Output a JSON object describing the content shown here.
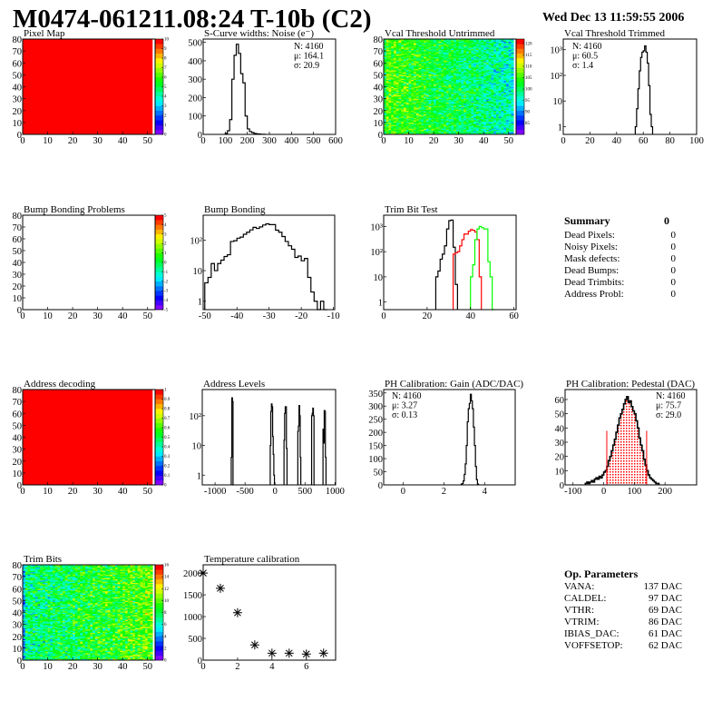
{
  "header": {
    "title": "M0474-061211.08:24 T-10b (C2)",
    "date": "Wed Dec 13 11:59:55 2006"
  },
  "colors": {
    "hist_line": "#000000",
    "red": "#ff0000",
    "green": "#00ff00",
    "palette": "rainbow (purple-blue-cyan-green-yellow-red)"
  },
  "chart_data": [
    {
      "id": "pixel-map",
      "type": "heatmap",
      "title": "Pixel Map",
      "xlim": [
        0,
        53
      ],
      "ylim": [
        0,
        80
      ],
      "xticks": [
        0,
        10,
        20,
        30,
        40,
        50
      ],
      "yticks": [
        0,
        10,
        20,
        30,
        40,
        50,
        60,
        70,
        80
      ],
      "z_range": [
        0,
        10
      ],
      "palette_ticks": [
        0,
        1,
        2,
        3,
        4,
        5,
        6,
        7,
        8,
        9,
        10
      ],
      "nx": 52,
      "ny": 80,
      "uniform_value": 10
    },
    {
      "id": "s-curve-widths",
      "type": "bar",
      "title": "S-Curve widths: Noise (e⁻)",
      "xlim": [
        0,
        600
      ],
      "ylim": [
        0,
        518
      ],
      "xticks": [
        0,
        100,
        200,
        300,
        400,
        500,
        600
      ],
      "yticks": [
        0,
        100,
        200,
        300,
        400,
        500
      ],
      "series": [
        {
          "x_start": 100,
          "bin_width": 10,
          "values": [
            5,
            20,
            80,
            300,
            430,
            490,
            440,
            330,
            280,
            100,
            30,
            15,
            10,
            5,
            3,
            2,
            1,
            1
          ]
        }
      ],
      "stats": [
        {
          "text": "N: 4160"
        },
        {
          "text": "μ: 164.1"
        },
        {
          "text": "σ: 20.9"
        }
      ]
    },
    {
      "id": "vcal-threshold-untrimmed",
      "type": "heatmap",
      "title": "Vcal Threshold Untrimmed",
      "xlim": [
        0,
        53
      ],
      "ylim": [
        0,
        80
      ],
      "xticks": [
        0,
        10,
        20,
        30,
        40,
        50
      ],
      "yticks": [
        0,
        10,
        20,
        30,
        40,
        50,
        60,
        70,
        80
      ],
      "z_range": [
        80,
        122
      ],
      "palette_ticks": [
        85,
        90,
        95,
        100,
        105,
        110,
        115,
        120
      ],
      "nx": 52,
      "ny": 80,
      "trend": {
        "left_mean": 106,
        "right_mean": 96,
        "spread": 9
      }
    },
    {
      "id": "vcal-threshold-trimmed",
      "type": "bar",
      "title": "Vcal Threshold Trimmed",
      "xlim": [
        0,
        100
      ],
      "ylim": [
        0.5,
        2600
      ],
      "ylog": true,
      "xticks": [
        0,
        20,
        40,
        60,
        80,
        100
      ],
      "yticks": [
        1,
        10,
        100,
        1000
      ],
      "ytick_labels": [
        "1",
        "10",
        "10²",
        "10³"
      ],
      "series": [
        {
          "x_start": 54,
          "bin_width": 1,
          "values": [
            1,
            5,
            30,
            150,
            500,
            800,
            900,
            1400,
            800,
            300,
            40,
            3,
            1
          ]
        }
      ],
      "stats": [
        {
          "text": "N: 4160"
        },
        {
          "text": "μ: 60.5"
        },
        {
          "text": "σ:  1.4"
        }
      ]
    },
    {
      "id": "bump-bonding-problems",
      "type": "heatmap",
      "title": "Bump Bonding Problems",
      "xlim": [
        0,
        53
      ],
      "ylim": [
        0,
        80
      ],
      "xticks": [
        0,
        10,
        20,
        30,
        40,
        50
      ],
      "yticks": [
        0,
        10,
        20,
        30,
        40,
        50,
        60,
        70,
        80
      ],
      "z_range": [
        -5,
        5
      ],
      "palette_ticks": [
        -5,
        -4,
        -3,
        -2,
        -1,
        0,
        1,
        2,
        3,
        4,
        5
      ],
      "nx": 52,
      "ny": 80,
      "empty": true
    },
    {
      "id": "bump-bonding",
      "type": "bar",
      "title": "Bump Bonding",
      "xlim": [
        -50.5,
        -9.6
      ],
      "ylim": [
        0.53,
        650
      ],
      "ylog": true,
      "xticks": [
        -50,
        -40,
        -30,
        -20,
        -10
      ],
      "yticks": [
        1,
        10,
        100
      ],
      "ytick_labels": [
        "1",
        "10",
        "10²"
      ],
      "series": [
        {
          "x_start": -50,
          "bin_width": 1,
          "values": [
            4,
            6,
            17,
            10,
            17,
            22,
            29,
            33,
            90,
            95,
            115,
            125,
            155,
            180,
            215,
            260,
            240,
            270,
            310,
            340,
            320,
            320,
            210,
            180,
            130,
            90,
            65,
            50,
            27,
            30,
            21,
            25,
            6,
            2,
            1,
            0,
            1,
            0
          ]
        }
      ]
    },
    {
      "id": "trim-bit-test",
      "type": "bar",
      "title": "Trim Bit Test",
      "xlim": [
        0,
        61
      ],
      "ylim": [
        0.5,
        2800
      ],
      "ylog": true,
      "xticks": [
        0,
        20,
        40,
        60
      ],
      "yticks": [
        1,
        10,
        100,
        1000
      ],
      "ytick_labels": [
        "1",
        "10",
        "10²",
        "10³"
      ],
      "series": [
        {
          "color": "#000000",
          "x_start": 24,
          "bin_width": 1,
          "values": [
            10,
            17,
            50,
            80,
            170,
            800,
            1700,
            1800,
            150,
            5
          ]
        },
        {
          "color": "#ff0000",
          "x_start": 32,
          "bin_width": 1,
          "values": [
            80,
            90,
            100,
            170,
            300,
            500,
            500,
            650,
            750,
            700,
            600,
            300,
            10
          ]
        },
        {
          "color": "#00ff00",
          "x_start": 40,
          "bin_width": 1,
          "values": [
            10,
            30,
            300,
            800,
            1000,
            900,
            800,
            800,
            40,
            10,
            0
          ]
        }
      ]
    },
    {
      "id": "address-decoding",
      "type": "heatmap",
      "title": "Address decoding",
      "xlim": [
        0,
        53
      ],
      "ylim": [
        0,
        80
      ],
      "xticks": [
        0,
        10,
        20,
        30,
        40,
        50
      ],
      "yticks": [
        0,
        10,
        20,
        30,
        40,
        50,
        60,
        70,
        80
      ],
      "z_range": [
        0,
        1
      ],
      "palette_ticks": [
        0,
        0.1,
        0.2,
        0.3,
        0.4,
        0.5,
        0.6,
        0.7,
        0.8,
        0.9,
        1
      ],
      "nx": 52,
      "ny": 80,
      "uniform_value": 1
    },
    {
      "id": "address-levels",
      "type": "bar",
      "title": "Address Levels",
      "xlim": [
        -1213,
        1010
      ],
      "ylim": [
        0.47,
        760
      ],
      "ylog": true,
      "xticks": [
        -1000,
        -500,
        0,
        500,
        1000
      ],
      "yticks": [
        1,
        10,
        100
      ],
      "ytick_labels": [
        "1",
        "10",
        "10²"
      ],
      "series": [
        {
          "x_start": -730,
          "bin_width": 10,
          "values": [
            4,
            400,
            300,
            0
          ]
        },
        {
          "x_start": -80,
          "bin_width": 10,
          "values": [
            10,
            140,
            250,
            200,
            20,
            5,
            1
          ]
        },
        {
          "x_start": 150,
          "bin_width": 10,
          "values": [
            15,
            120,
            200,
            200,
            8
          ]
        },
        {
          "x_start": 380,
          "bin_width": 10,
          "values": [
            30,
            45,
            220,
            100,
            4
          ]
        },
        {
          "x_start": 610,
          "bin_width": 10,
          "values": [
            100,
            120,
            180,
            100,
            0
          ]
        },
        {
          "x_start": 800,
          "bin_width": 10,
          "values": [
            35,
            12,
            150,
            140,
            4
          ]
        }
      ]
    },
    {
      "id": "ph-calibration-gain",
      "type": "bar",
      "title": "PH Calibration: Gain (ADC/DAC)",
      "xlim": [
        -0.95,
        5.5
      ],
      "ylim": [
        0,
        363
      ],
      "xticks": [
        0,
        2,
        4
      ],
      "yticks": [
        0,
        50,
        100,
        150,
        200,
        250,
        300,
        350
      ],
      "series": [
        {
          "x_start": 2.85,
          "bin_width": 0.05,
          "values": [
            3,
            5,
            15,
            40,
            80,
            150,
            240,
            290,
            310,
            345,
            320,
            290,
            220,
            150,
            70,
            20,
            3
          ]
        }
      ],
      "stats": [
        {
          "text": "N: 4160"
        },
        {
          "text": "μ: 3.27"
        },
        {
          "text": "σ: 0.13"
        }
      ]
    },
    {
      "id": "ph-calibration-pedestal",
      "type": "bar",
      "title": "PH Calibration: Pedestal (DAC)",
      "xlim": [
        -126,
        303
      ],
      "ylim": [
        0,
        67
      ],
      "xticks": [
        -100,
        0,
        100,
        200
      ],
      "yticks": [
        0,
        10,
        20,
        30,
        40,
        50,
        60
      ],
      "series": [
        {
          "x_start": -60,
          "bin_width": 5,
          "values": [
            1,
            2,
            1,
            2,
            3,
            2,
            4,
            5,
            4,
            6,
            5,
            7,
            9,
            10,
            13,
            17,
            20,
            24,
            28,
            32,
            37,
            42,
            47,
            50,
            53,
            57,
            60,
            62,
            58,
            59,
            55,
            52,
            50,
            45,
            40,
            33,
            28,
            24,
            18,
            14,
            10,
            7,
            5,
            4,
            3,
            2,
            1,
            1
          ],
          "fill_range": [
            10,
            140
          ],
          "fill_color": "#ff0000"
        }
      ],
      "cut_lines": [
        10,
        140
      ],
      "cut_line_height": 38,
      "stats": [
        {
          "text": "N: 4160",
          "color": "#000000"
        },
        {
          "text": "μ: 75.7",
          "color": "#ff0000"
        },
        {
          "text": "σ: 29.0",
          "color": "#ff0000"
        }
      ]
    },
    {
      "id": "trim-bits",
      "type": "heatmap",
      "title": "Trim Bits",
      "xlim": [
        0,
        53
      ],
      "ylim": [
        0,
        80
      ],
      "xticks": [
        0,
        10,
        20,
        30,
        40,
        50
      ],
      "yticks": [
        0,
        10,
        20,
        30,
        40,
        50,
        60,
        70,
        80
      ],
      "z_range": [
        0,
        16
      ],
      "palette_ticks": [
        0,
        2,
        4,
        6,
        8,
        10,
        12,
        14,
        16
      ],
      "nx": 52,
      "ny": 80,
      "trend": {
        "left_mean": 7,
        "right_mean": 10,
        "spread": 4
      }
    },
    {
      "id": "temperature-calibration",
      "type": "scatter",
      "title": "Temperature calibration",
      "xlim": [
        0,
        7.7
      ],
      "ylim": [
        0,
        2190
      ],
      "xticks": [
        0,
        2,
        4,
        6
      ],
      "yticks": [
        0,
        500,
        1000,
        1500,
        2000
      ],
      "x": [
        0,
        1,
        2,
        3,
        4,
        5,
        6,
        7
      ],
      "y": [
        2000,
        1650,
        1090,
        350,
        160,
        160,
        140,
        160
      ]
    }
  ],
  "summary": {
    "title": "Summary",
    "total": "0",
    "rows": [
      {
        "label": "Dead Pixels:",
        "value": "0"
      },
      {
        "label": "Noisy Pixels:",
        "value": "0"
      },
      {
        "label": "Mask defects:",
        "value": "0"
      },
      {
        "label": "Dead Bumps:",
        "value": "0"
      },
      {
        "label": "Dead Trimbits:",
        "value": "0"
      },
      {
        "label": "Address Probl:",
        "value": "0"
      }
    ]
  },
  "op_parameters": {
    "title": "Op. Parameters",
    "rows": [
      {
        "label": "VANA:",
        "value": "137 DAC"
      },
      {
        "label": "CALDEL:",
        "value": "97 DAC"
      },
      {
        "label": "VTHR:",
        "value": "69 DAC"
      },
      {
        "label": "VTRIM:",
        "value": "86 DAC"
      },
      {
        "label": "IBIAS_DAC:",
        "value": "61 DAC"
      },
      {
        "label": "VOFFSETOP:",
        "value": "62 DAC"
      }
    ]
  }
}
